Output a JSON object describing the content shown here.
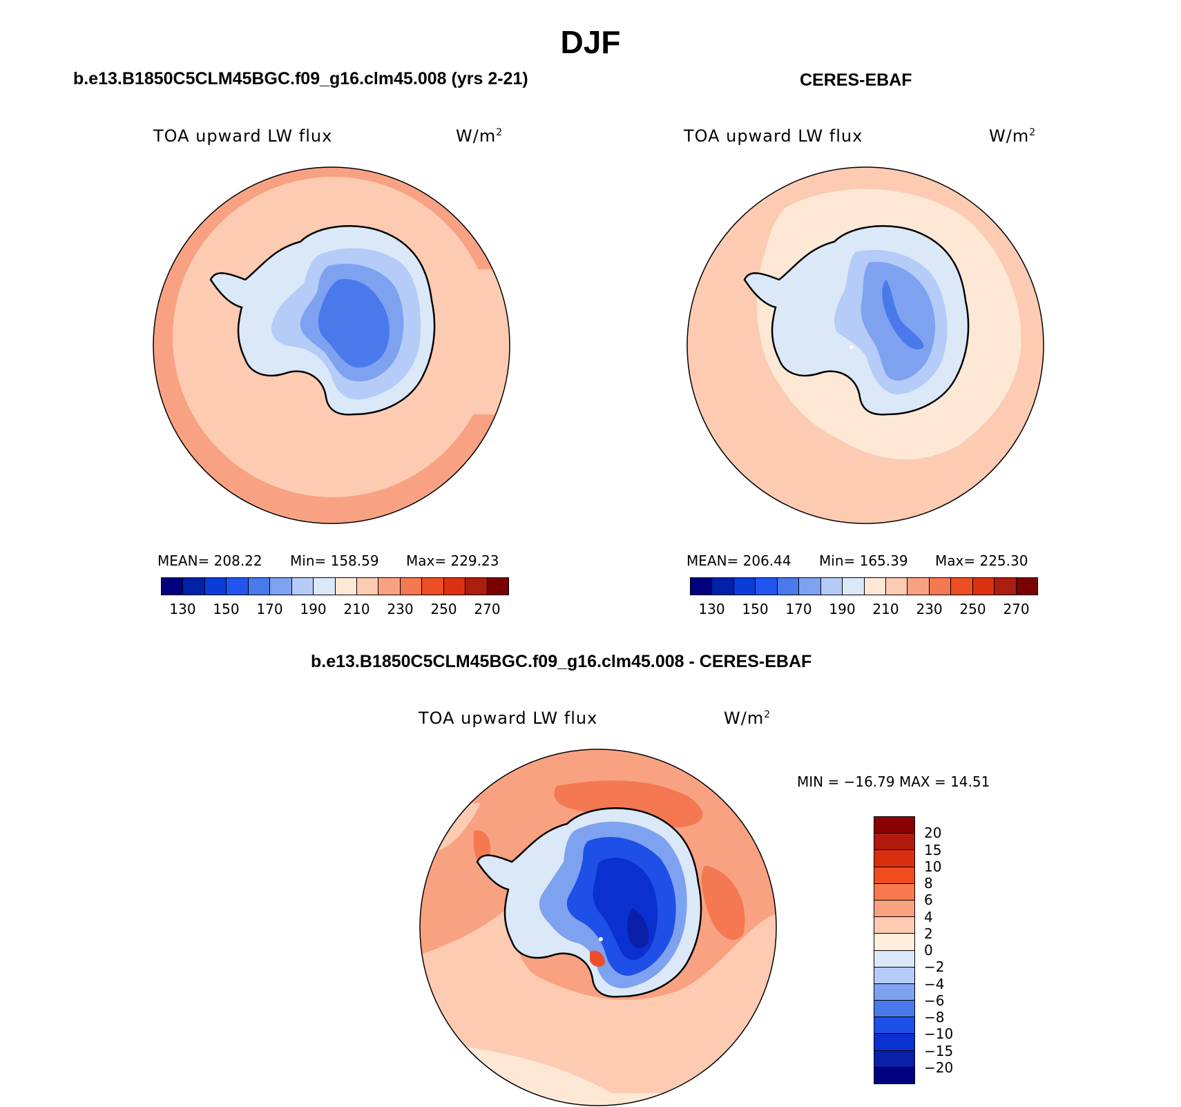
{
  "title": "DJF",
  "panels": [
    {
      "title": "b.e13.B1850C5CLM45BGC.f09_g16.clm45.008 (yrs 2-21)",
      "variable": "TOA upward LW flux",
      "units": "W/m",
      "units_sup": "2",
      "stats": {
        "mean": "MEAN= 208.22",
        "min": "Min= 158.59",
        "max": "Max= 229.23"
      }
    },
    {
      "title": "CERES-EBAF",
      "variable": "TOA upward LW flux",
      "units": "W/m",
      "units_sup": "2",
      "stats": {
        "mean": "MEAN= 206.44",
        "min": "Min= 165.39",
        "max": "Max= 225.30"
      }
    },
    {
      "title": "b.e13.B1850C5CLM45BGC.f09_g16.clm45.008 - CERES-EBAF",
      "variable": "TOA upward LW flux",
      "units": "W/m",
      "units_sup": "2",
      "stats": {
        "minmax": "MIN = −16.79 MAX =   14.51"
      }
    }
  ],
  "colorbar_main": {
    "colors": [
      "#00007f",
      "#0022a8",
      "#0a3cd8",
      "#2255f0",
      "#4a79ec",
      "#7fa2f0",
      "#b4ccf7",
      "#dbe8f8",
      "#fde8d6",
      "#fccbb2",
      "#f8a283",
      "#f47852",
      "#ec4e26",
      "#dc3212",
      "#ab1d0f",
      "#7a0000"
    ],
    "labels": [
      "130",
      "150",
      "170",
      "190",
      "210",
      "230",
      "250",
      "270"
    ]
  },
  "colorbar_diff": {
    "colors": [
      "#8b0000",
      "#b01a0c",
      "#d8300f",
      "#f04d20",
      "#f77a4e",
      "#f8a282",
      "#fccbb2",
      "#fdeedd",
      "#dbe8f8",
      "#b4ccf7",
      "#7fa2f0",
      "#4a79ec",
      "#1e4fe6",
      "#0a30d0",
      "#0a1fa8",
      "#00007f"
    ],
    "labels": [
      "20",
      "15",
      "10",
      "8",
      "6",
      "4",
      "2",
      "0",
      "−2",
      "−4",
      "−6",
      "−8",
      "−10",
      "−15",
      "−20"
    ]
  }
}
